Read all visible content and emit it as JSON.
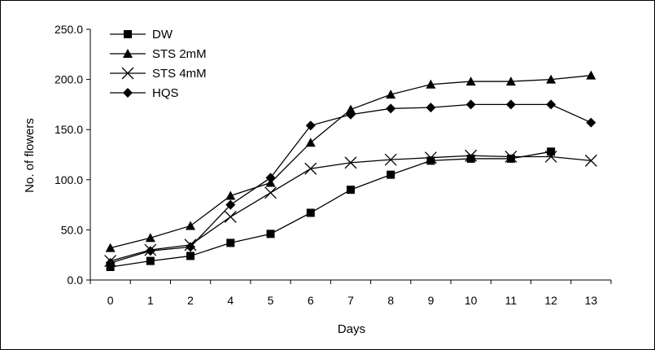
{
  "chart_data": {
    "type": "line",
    "title": "",
    "xlabel": "Days",
    "ylabel": "No. of flowers",
    "categories": [
      "0",
      "1",
      "2",
      "4",
      "5",
      "6",
      "7",
      "8",
      "9",
      "10",
      "11",
      "12",
      "13"
    ],
    "ylim": [
      0,
      250
    ],
    "yticks": [
      "0.0",
      "50.0",
      "100.0",
      "150.0",
      "200.0",
      "250.0"
    ],
    "grid": false,
    "legend_position": "top-left",
    "series": [
      {
        "name": "DW",
        "marker": "square",
        "color": "#000000",
        "values": [
          13,
          19,
          24,
          37,
          46,
          67,
          90,
          105,
          119,
          121,
          121,
          128,
          null
        ]
      },
      {
        "name": "STS 2mM",
        "marker": "triangle",
        "color": "#000000",
        "values": [
          32,
          42,
          54,
          84,
          97,
          137,
          170,
          185,
          195,
          198,
          198,
          200,
          204
        ]
      },
      {
        "name": "STS 4mM",
        "marker": "x",
        "color": "#000000",
        "values": [
          19,
          30,
          35,
          63,
          87,
          111,
          117,
          120,
          122,
          124,
          123,
          123,
          119
        ]
      },
      {
        "name": "HQS",
        "marker": "diamond",
        "color": "#000000",
        "values": [
          17,
          29,
          33,
          75,
          102,
          154,
          165,
          171,
          172,
          175,
          175,
          175,
          157
        ]
      }
    ]
  }
}
